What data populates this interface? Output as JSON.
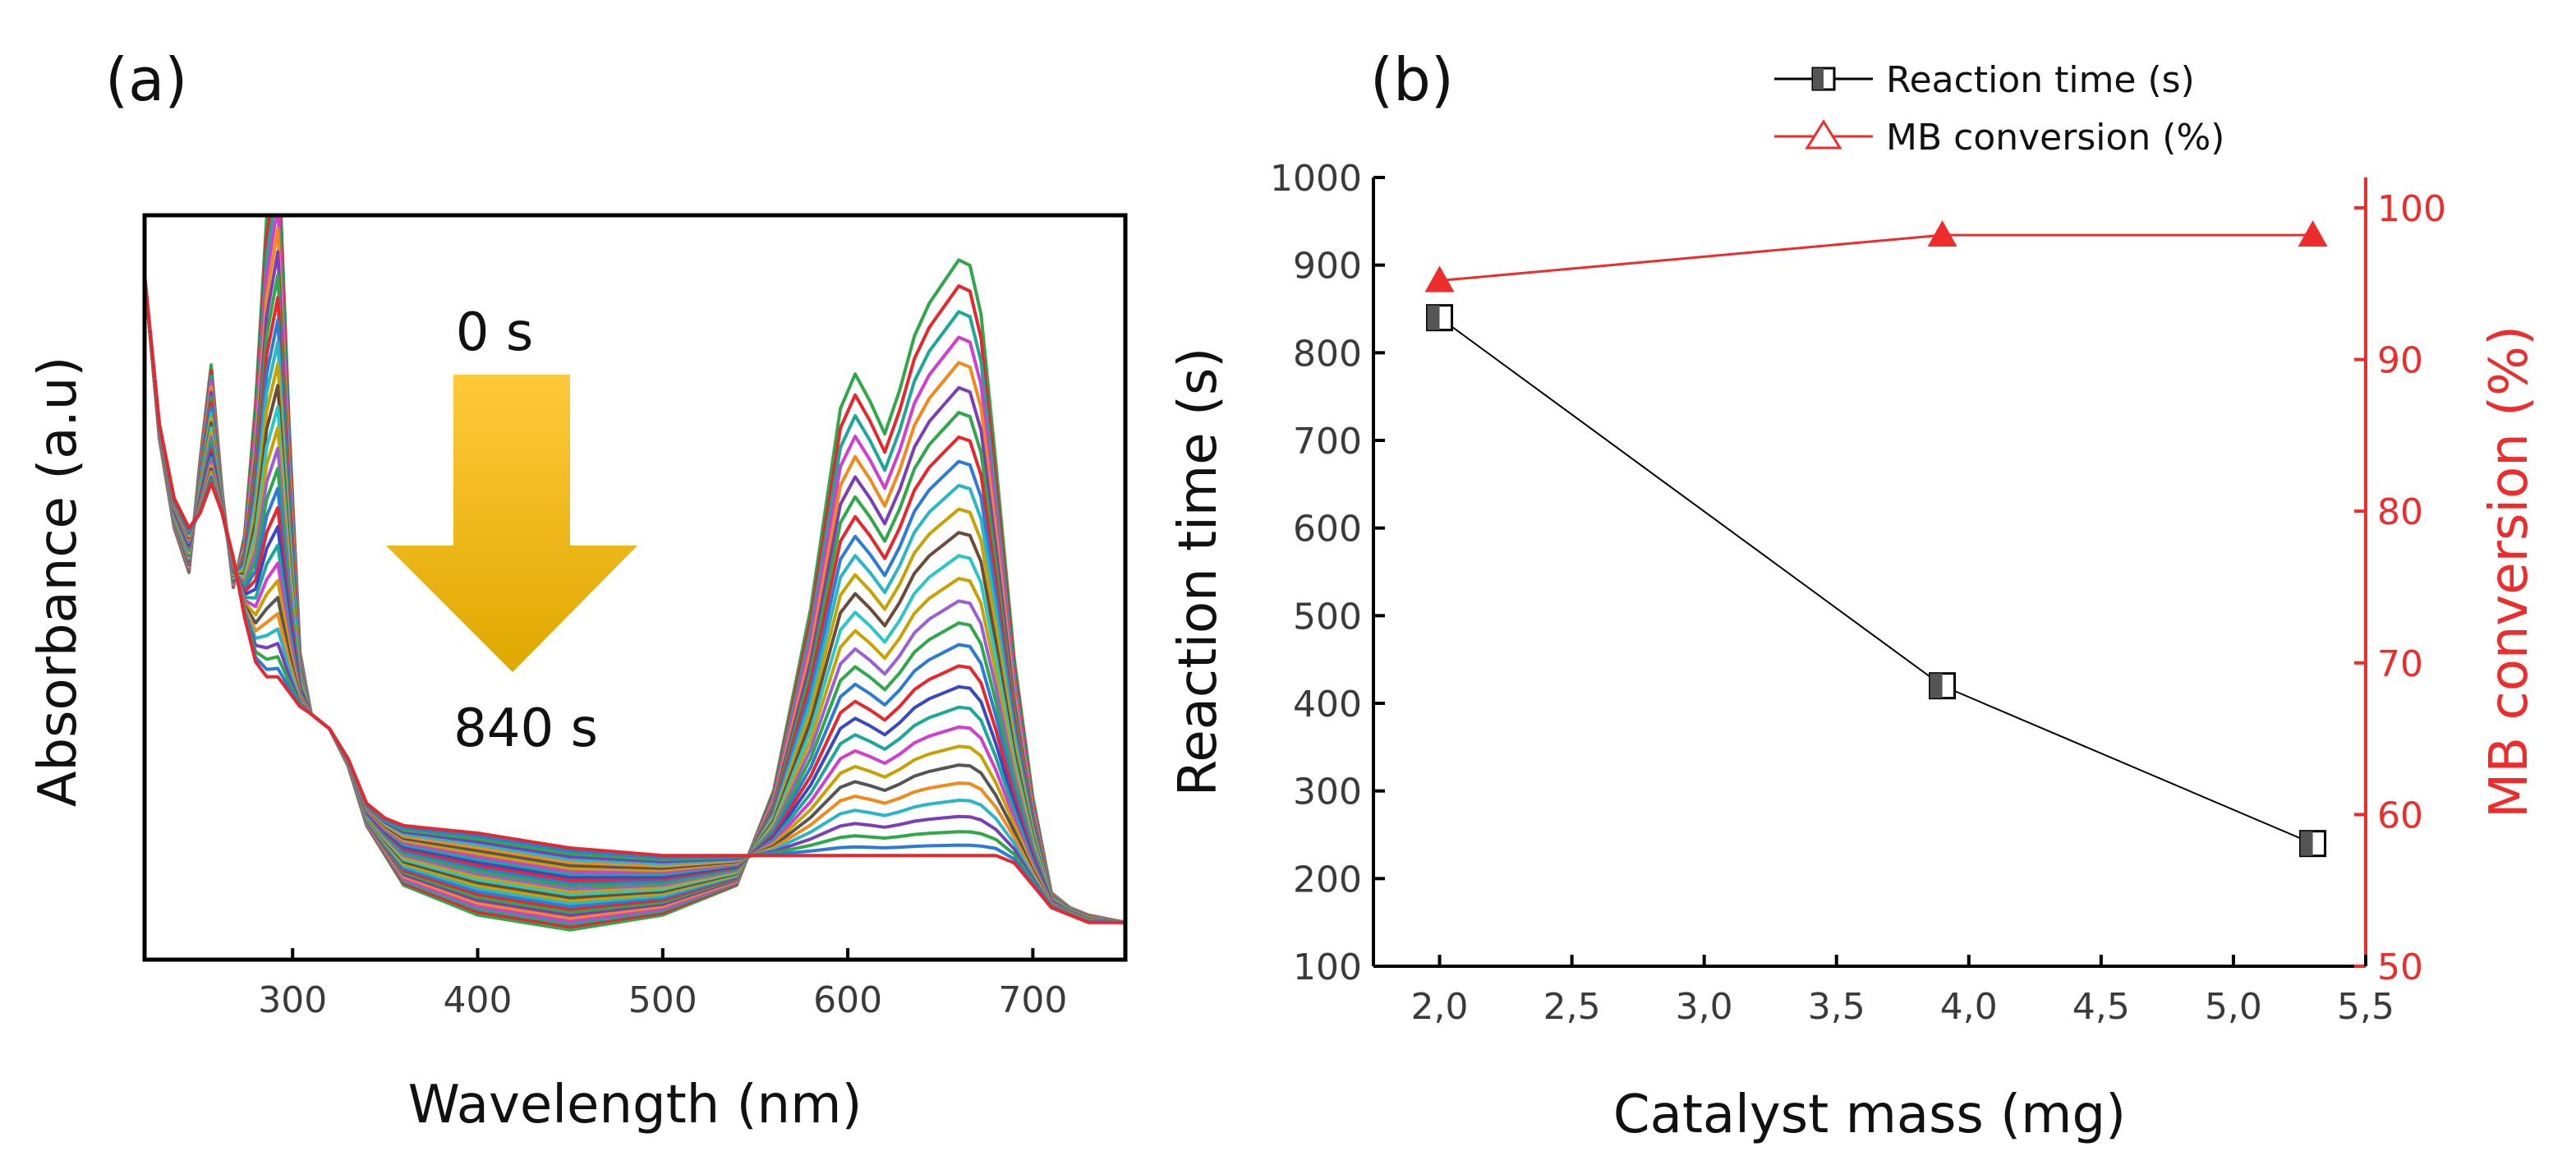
{
  "colors": {
    "axis": "#000000",
    "secondary_axis": "#ee2c2c",
    "reaction_series": "#000000",
    "conversion_series": "#ee2c2c",
    "arrow_top": "#ffc93a",
    "arrow_bottom": "#e0a800"
  },
  "chart_data": [
    {
      "type": "line",
      "panel_label": "(a)",
      "xlabel": "Wavelength (nm)",
      "ylabel": "Absorbance (a.u)",
      "xlim": [
        220,
        750
      ],
      "ylim": [
        0,
        1
      ],
      "xticks": [
        300,
        400,
        500,
        600,
        700
      ],
      "y_tick_labels": false,
      "annotations": {
        "start": "0 s",
        "end": "840 s"
      },
      "series_colors": [
        "#e8262c",
        "#2a7cd8",
        "#2fa84a",
        "#7a3fb8",
        "#29b7c7",
        "#f28a1a",
        "#555555",
        "#c8a200",
        "#d23fd0",
        "#1aa898",
        "#3a48c8",
        "#e8262c",
        "#2a7cd8",
        "#2fa84a",
        "#9a5fd8",
        "#c8a200",
        "#29c7c7",
        "#6b4a3a",
        "#c8a200",
        "#29b7c7",
        "#2a7cd8",
        "#e8262c",
        "#2fa84a",
        "#7a3fb8",
        "#f28a1a",
        "#d23fd0",
        "#1aa898",
        "#e8262c",
        "#2fa84a"
      ],
      "profile": {
        "x": [
          220,
          228,
          236,
          244,
          250,
          256,
          262,
          268,
          274,
          280,
          286,
          292,
          298,
          304,
          310,
          320,
          330,
          340,
          350,
          360,
          400,
          450,
          500,
          540,
          560,
          580,
          596,
          604,
          612,
          620,
          628,
          636,
          644,
          652,
          660,
          666,
          672,
          680,
          690,
          700,
          710,
          720,
          730,
          750
        ],
        "bands": [
          0,
          0,
          0,
          0,
          0.18,
          0.3,
          0.12,
          0,
          0.15,
          0.45,
          0.82,
          1.0,
          0.5,
          0.1,
          0,
          0,
          0,
          0,
          0,
          0,
          0,
          0,
          0,
          0,
          0.12,
          0.4,
          0.74,
          0.79,
          0.74,
          0.68,
          0.76,
          0.86,
          0.92,
          0.96,
          1.0,
          0.99,
          0.9,
          0.64,
          0.32,
          0.12,
          0,
          0,
          0,
          0
        ],
        "residual": [
          0.92,
          0.72,
          0.62,
          0.58,
          0.6,
          0.64,
          0.6,
          0.54,
          0.46,
          0.4,
          0.38,
          0.38,
          0.36,
          0.34,
          0.33,
          0.31,
          0.27,
          0.21,
          0.19,
          0.18,
          0.17,
          0.15,
          0.14,
          0.14,
          0.14,
          0.14,
          0.14,
          0.14,
          0.14,
          0.14,
          0.14,
          0.14,
          0.14,
          0.14,
          0.14,
          0.14,
          0.14,
          0.14,
          0.13,
          0.1,
          0.07,
          0.06,
          0.05,
          0.05
        ],
        "initial_residual": [
          0.92,
          0.7,
          0.58,
          0.52,
          0.54,
          0.58,
          0.54,
          0.5,
          0.46,
          0.42,
          0.4,
          0.38,
          0.36,
          0.34,
          0.33,
          0.31,
          0.26,
          0.18,
          0.14,
          0.1,
          0.06,
          0.04,
          0.06,
          0.1,
          0.14,
          0.18,
          0.2,
          0.21,
          0.21,
          0.21,
          0.21,
          0.21,
          0.21,
          0.21,
          0.21,
          0.21,
          0.21,
          0.2,
          0.17,
          0.13,
          0.09,
          0.07,
          0.06,
          0.05
        ],
        "band_scale": 0.73
      }
    },
    {
      "type": "line",
      "panel_label": "(b)",
      "xlabel": "Catalyst mass (mg)",
      "ylabel": "Reaction time (s)",
      "ylabel_right": "MB conversion (%)",
      "xlim": [
        1.75,
        5.5
      ],
      "ylim": [
        100,
        1000
      ],
      "ylim_right": [
        50,
        102
      ],
      "xticks": [
        "2,0",
        "2,5",
        "3,0",
        "3,5",
        "4,0",
        "4,5",
        "5,0",
        "5,5"
      ],
      "xtick_values": [
        2.0,
        2.5,
        3.0,
        3.5,
        4.0,
        4.5,
        5.0,
        5.5
      ],
      "yticks": [
        100,
        200,
        300,
        400,
        500,
        600,
        700,
        800,
        900,
        1000
      ],
      "yticks_right": [
        50,
        60,
        70,
        80,
        90,
        100
      ],
      "series": [
        {
          "name": "Reaction time (s)",
          "axis": "left",
          "marker": "half-filled-square",
          "x": [
            2.0,
            3.9,
            5.3
          ],
          "values": [
            840,
            420,
            240
          ]
        },
        {
          "name": "MB conversion (%)",
          "axis": "right",
          "marker": "triangle",
          "x": [
            2.0,
            3.9,
            5.3
          ],
          "values": [
            95.2,
            98.2,
            98.2
          ]
        }
      ]
    }
  ]
}
